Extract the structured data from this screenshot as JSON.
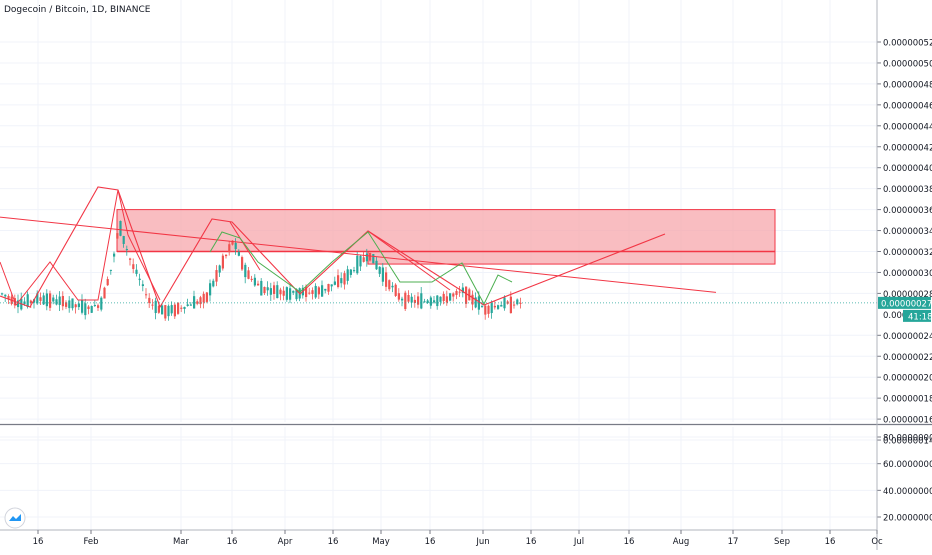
{
  "title": "Dogecoin / Bitcoin, 1D, BINANCE",
  "price_label": "0.00000027",
  "timer_label": "41:18",
  "partial_price_label": "0.0000",
  "colors": {
    "up": "#26a69a",
    "down": "#ef5350",
    "candle_up": "#26a69a",
    "candle_down": "#ef5350",
    "drawing": "#f23645",
    "zone_fill": "#f7a1a6",
    "green_wave": "#4caf50",
    "price_line": "#26a69a",
    "label_bg": "#26a69a"
  },
  "chart_data": [
    {
      "type": "candlestick",
      "title": "Dogecoin / Bitcoin, 1D, BINANCE",
      "x_tick_labels": [
        "16",
        "Feb",
        "Mar",
        "16",
        "Apr",
        "16",
        "May",
        "16",
        "Jun",
        "16",
        "Jul",
        "16",
        "Aug",
        "17",
        "Sep",
        "16",
        "Oc"
      ],
      "y_tick_labels": [
        "0.00000052",
        "0.00000050",
        "0.00000048",
        "0.00000046",
        "0.00000044",
        "0.00000042",
        "0.00000040",
        "0.00000038",
        "0.00000036",
        "0.00000034",
        "0.00000032",
        "0.00000030",
        "0.00000028",
        "0.00000024",
        "0.00000022",
        "0.00000020",
        "0.00000018",
        "0.00000016",
        "0.00000014"
      ],
      "ylim": [
        1.39e-07,
        5.31e-07
      ],
      "last_price": 2.7e-07,
      "grid": true,
      "drawings": {
        "resistance_zone": {
          "top": 3.6e-07,
          "bottom": 3.08e-07,
          "mid_line": 3.2e-07
        },
        "descending_trendline": {
          "start": 3.5e-07,
          "end": 2.8e-07
        },
        "zigzag_highs_lows": [
          3.5e-07,
          2.6e-07,
          3.6e-07,
          2.6e-07,
          3.31e-07,
          2.7e-07,
          3.2e-07,
          2.62e-07,
          2.6e-07,
          2.8e-07,
          3.18e-07
        ]
      }
    },
    {
      "type": "line",
      "title": "",
      "y_tick_labels": [
        "80.00000000",
        "60.00000000",
        "40.00000000",
        "20.00000000"
      ],
      "ylim": [
        10,
        87
      ]
    }
  ]
}
